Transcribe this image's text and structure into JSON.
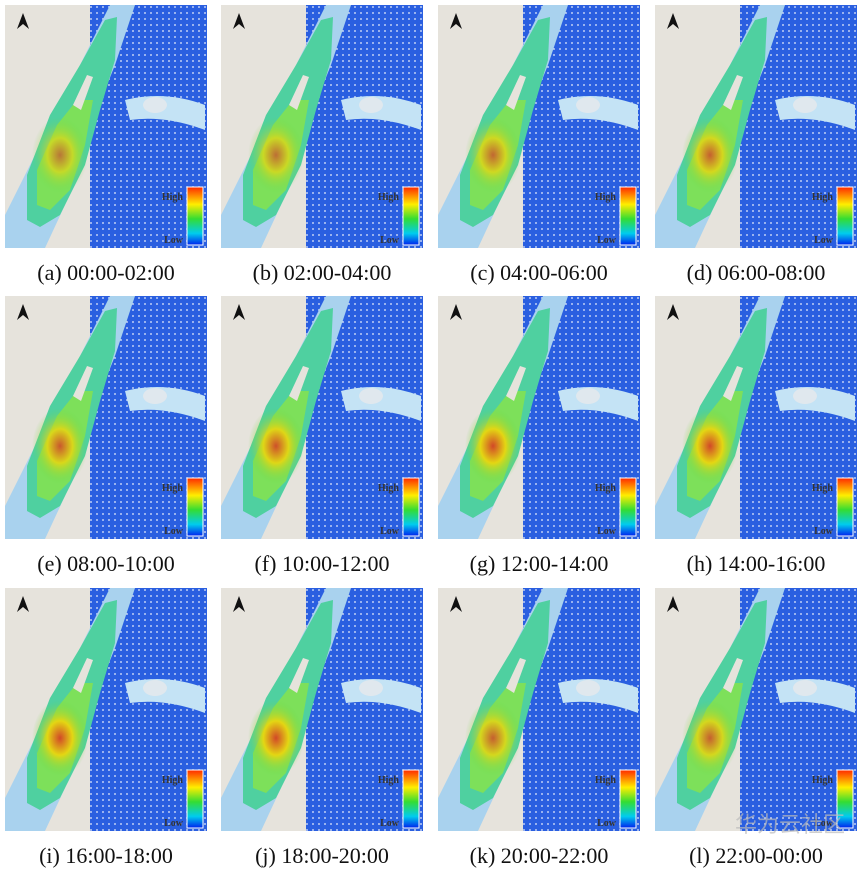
{
  "figure": {
    "panels": [
      {
        "caption": "(a) 00:00-02:00",
        "legend_high": "High",
        "legend_low": "Low"
      },
      {
        "caption": "(b) 02:00-04:00",
        "legend_high": "High",
        "legend_low": "Low"
      },
      {
        "caption": "(c) 04:00-06:00",
        "legend_high": "High",
        "legend_low": "Low"
      },
      {
        "caption": "(d) 06:00-08:00",
        "legend_high": "High",
        "legend_low": "Low"
      },
      {
        "caption": "(e) 08:00-10:00",
        "legend_high": "High",
        "legend_low": "Low"
      },
      {
        "caption": "(f) 10:00-12:00",
        "legend_high": "High",
        "legend_low": "Low"
      },
      {
        "caption": "(g) 12:00-14:00",
        "legend_high": "High",
        "legend_low": "Low"
      },
      {
        "caption": "(h) 14:00-16:00",
        "legend_high": "High",
        "legend_low": "Low"
      },
      {
        "caption": "(i) 16:00-18:00",
        "legend_high": "High",
        "legend_low": "Low"
      },
      {
        "caption": "(j) 18:00-20:00",
        "legend_high": "High",
        "legend_low": "Low"
      },
      {
        "caption": "(k) 20:00-22:00",
        "legend_high": "High",
        "legend_low": "Low"
      },
      {
        "caption": "(l) 22:00-00:00",
        "legend_high": "High",
        "legend_low": "Low"
      }
    ],
    "watermark": "华为云社区"
  }
}
